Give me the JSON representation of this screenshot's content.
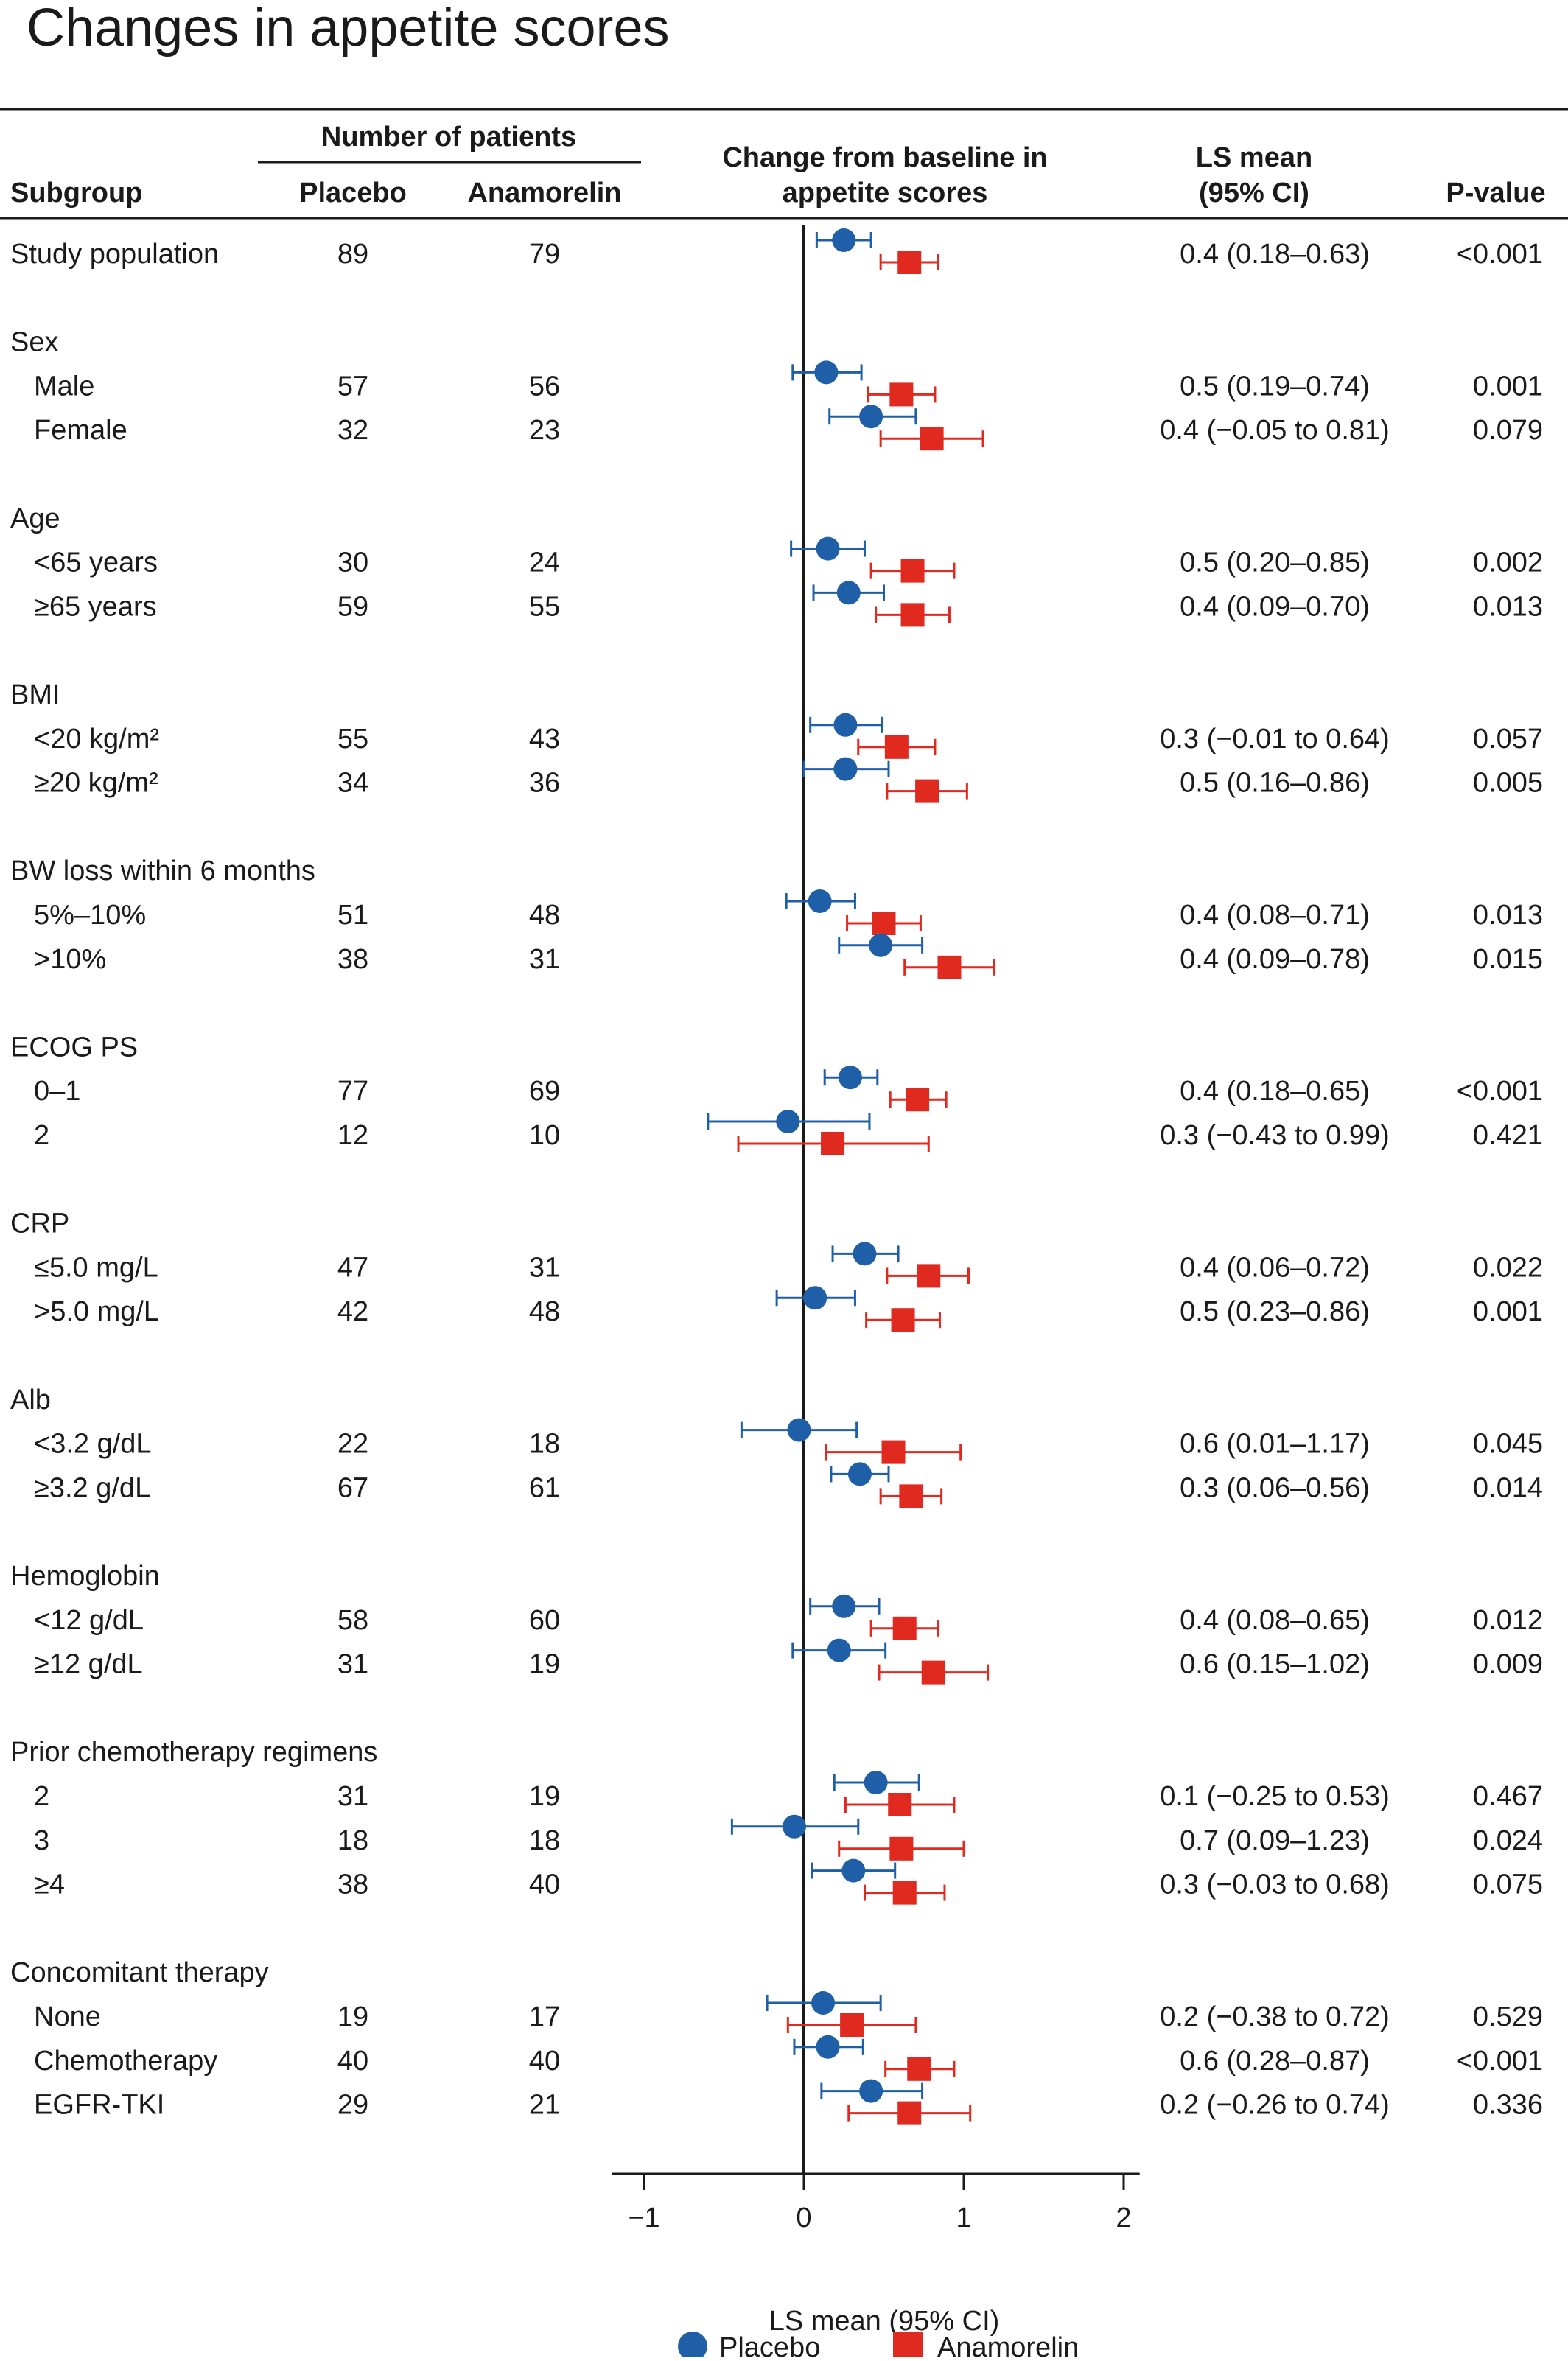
{
  "title": "Changes in appetite scores",
  "headers": {
    "subgroup": "Subgroup",
    "number_of_patients": "Number of patients",
    "placebo": "Placebo",
    "anamorelin": "Anamorelin",
    "change_line1": "Change from baseline in",
    "change_line2": "appetite scores",
    "ls_mean_line1": "LS mean",
    "ls_mean_line2": "(95% CI)",
    "pvalue": "P-value"
  },
  "colors": {
    "placebo": "#1f5fa8",
    "anamorelin": "#e0291f",
    "text": "#1a1a1a"
  },
  "chart_data": {
    "type": "scatter",
    "xlabel": "LS mean (95% CI)",
    "xlim": [
      -1.2,
      2.1
    ],
    "xticks": [
      "−1",
      "0",
      "1",
      "2"
    ],
    "xtick_values": [
      -1,
      0,
      1,
      2
    ],
    "legend": {
      "position": "bottom-center",
      "placebo": "Placebo",
      "anamorelin": "Anamorelin"
    },
    "rows": [
      {
        "kind": "data",
        "label": "Study population",
        "indent": false,
        "n_placebo": "89",
        "n_anamorelin": "79",
        "ls_mean": "0.4 (0.18–0.63)",
        "pvalue": "<0.001",
        "placebo": [
          0.25,
          0.08,
          0.42
        ],
        "anamorelin": [
          0.66,
          0.48,
          0.84
        ]
      },
      {
        "kind": "header",
        "label": "Sex"
      },
      {
        "kind": "data",
        "label": "Male",
        "indent": true,
        "n_placebo": "57",
        "n_anamorelin": "56",
        "ls_mean": "0.5 (0.19–0.74)",
        "pvalue": "0.001",
        "placebo": [
          0.14,
          -0.07,
          0.36
        ],
        "anamorelin": [
          0.61,
          0.4,
          0.82
        ]
      },
      {
        "kind": "data",
        "label": "Female",
        "indent": true,
        "n_placebo": "32",
        "n_anamorelin": "23",
        "ls_mean": "0.4 (−0.05 to 0.81)",
        "pvalue": "0.079",
        "placebo": [
          0.42,
          0.16,
          0.7
        ],
        "anamorelin": [
          0.8,
          0.48,
          1.12
        ]
      },
      {
        "kind": "header",
        "label": "Age"
      },
      {
        "kind": "data",
        "label": "<65 years",
        "indent": true,
        "n_placebo": "30",
        "n_anamorelin": "24",
        "ls_mean": "0.5 (0.20–0.85)",
        "pvalue": "0.002",
        "placebo": [
          0.15,
          -0.08,
          0.38
        ],
        "anamorelin": [
          0.68,
          0.42,
          0.94
        ]
      },
      {
        "kind": "data",
        "label": "≥65 years",
        "indent": true,
        "n_placebo": "59",
        "n_anamorelin": "55",
        "ls_mean": "0.4 (0.09–0.70)",
        "pvalue": "0.013",
        "placebo": [
          0.28,
          0.06,
          0.5
        ],
        "anamorelin": [
          0.68,
          0.45,
          0.91
        ]
      },
      {
        "kind": "header",
        "label": "BMI"
      },
      {
        "kind": "data",
        "label": "<20 kg/m²",
        "indent": true,
        "n_placebo": "55",
        "n_anamorelin": "43",
        "ls_mean": "0.3 (−0.01 to 0.64)",
        "pvalue": "0.057",
        "placebo": [
          0.26,
          0.04,
          0.49
        ],
        "anamorelin": [
          0.58,
          0.34,
          0.82
        ]
      },
      {
        "kind": "data",
        "label": "≥20 kg/m²",
        "indent": true,
        "n_placebo": "34",
        "n_anamorelin": "36",
        "ls_mean": "0.5 (0.16–0.86)",
        "pvalue": "0.005",
        "placebo": [
          0.26,
          0.0,
          0.53
        ],
        "anamorelin": [
          0.77,
          0.52,
          1.02
        ]
      },
      {
        "kind": "header",
        "label": "BW loss within 6 months"
      },
      {
        "kind": "data",
        "label": "5%–10%",
        "indent": true,
        "n_placebo": "51",
        "n_anamorelin": "48",
        "ls_mean": "0.4 (0.08–0.71)",
        "pvalue": "0.013",
        "placebo": [
          0.1,
          -0.11,
          0.32
        ],
        "anamorelin": [
          0.5,
          0.27,
          0.73
        ]
      },
      {
        "kind": "data",
        "label": ">10%",
        "indent": true,
        "n_placebo": "38",
        "n_anamorelin": "31",
        "ls_mean": "0.4 (0.09–0.78)",
        "pvalue": "0.015",
        "placebo": [
          0.48,
          0.22,
          0.74
        ],
        "anamorelin": [
          0.91,
          0.63,
          1.19
        ]
      },
      {
        "kind": "header",
        "label": "ECOG PS"
      },
      {
        "kind": "data",
        "label": "0–1",
        "indent": true,
        "n_placebo": "77",
        "n_anamorelin": "69",
        "ls_mean": "0.4 (0.18–0.65)",
        "pvalue": "<0.001",
        "placebo": [
          0.29,
          0.13,
          0.46
        ],
        "anamorelin": [
          0.71,
          0.54,
          0.89
        ]
      },
      {
        "kind": "data",
        "label": "2",
        "indent": true,
        "n_placebo": "12",
        "n_anamorelin": "10",
        "ls_mean": "0.3 (−0.43 to 0.99)",
        "pvalue": "0.421",
        "placebo": [
          -0.1,
          -0.6,
          0.41
        ],
        "anamorelin": [
          0.18,
          -0.41,
          0.78
        ]
      },
      {
        "kind": "header",
        "label": "CRP"
      },
      {
        "kind": "data",
        "label": "≤5.0 mg/L",
        "indent": true,
        "n_placebo": "47",
        "n_anamorelin": "31",
        "ls_mean": "0.4 (0.06–0.72)",
        "pvalue": "0.022",
        "placebo": [
          0.38,
          0.18,
          0.59
        ],
        "anamorelin": [
          0.78,
          0.52,
          1.03
        ]
      },
      {
        "kind": "data",
        "label": ">5.0 mg/L",
        "indent": true,
        "n_placebo": "42",
        "n_anamorelin": "48",
        "ls_mean": "0.5 (0.23–0.86)",
        "pvalue": "0.001",
        "placebo": [
          0.07,
          -0.17,
          0.32
        ],
        "anamorelin": [
          0.62,
          0.39,
          0.85
        ]
      },
      {
        "kind": "header",
        "label": "Alb"
      },
      {
        "kind": "data",
        "label": "<3.2 g/dL",
        "indent": true,
        "n_placebo": "22",
        "n_anamorelin": "18",
        "ls_mean": "0.6 (0.01–1.17)",
        "pvalue": "0.045",
        "placebo": [
          -0.03,
          -0.39,
          0.33
        ],
        "anamorelin": [
          0.56,
          0.14,
          0.98
        ]
      },
      {
        "kind": "data",
        "label": "≥3.2 g/dL",
        "indent": true,
        "n_placebo": "67",
        "n_anamorelin": "61",
        "ls_mean": "0.3 (0.06–0.56)",
        "pvalue": "0.014",
        "placebo": [
          0.35,
          0.17,
          0.53
        ],
        "anamorelin": [
          0.67,
          0.48,
          0.86
        ]
      },
      {
        "kind": "header",
        "label": "Hemoglobin"
      },
      {
        "kind": "data",
        "label": "<12 g/dL",
        "indent": true,
        "n_placebo": "58",
        "n_anamorelin": "60",
        "ls_mean": "0.4 (0.08–0.65)",
        "pvalue": "0.012",
        "placebo": [
          0.25,
          0.04,
          0.47
        ],
        "anamorelin": [
          0.63,
          0.42,
          0.84
        ]
      },
      {
        "kind": "data",
        "label": "≥12 g/dL",
        "indent": true,
        "n_placebo": "31",
        "n_anamorelin": "19",
        "ls_mean": "0.6 (0.15–1.02)",
        "pvalue": "0.009",
        "placebo": [
          0.22,
          -0.07,
          0.51
        ],
        "anamorelin": [
          0.81,
          0.47,
          1.15
        ]
      },
      {
        "kind": "header",
        "label": "Prior chemotherapy regimens"
      },
      {
        "kind": "data",
        "label": "2",
        "indent": true,
        "n_placebo": "31",
        "n_anamorelin": "19",
        "ls_mean": "0.1 (−0.25 to 0.53)",
        "pvalue": "0.467",
        "placebo": [
          0.45,
          0.19,
          0.72
        ],
        "anamorelin": [
          0.6,
          0.26,
          0.94
        ]
      },
      {
        "kind": "data",
        "label": "3",
        "indent": true,
        "n_placebo": "18",
        "n_anamorelin": "18",
        "ls_mean": "0.7 (0.09–1.23)",
        "pvalue": "0.024",
        "placebo": [
          -0.06,
          -0.45,
          0.34
        ],
        "anamorelin": [
          0.61,
          0.22,
          1.0
        ]
      },
      {
        "kind": "data",
        "label": "≥4",
        "indent": true,
        "n_placebo": "38",
        "n_anamorelin": "40",
        "ls_mean": "0.3 (−0.03 to 0.68)",
        "pvalue": "0.075",
        "placebo": [
          0.31,
          0.05,
          0.57
        ],
        "anamorelin": [
          0.63,
          0.38,
          0.88
        ]
      },
      {
        "kind": "header",
        "label": "Concomitant therapy"
      },
      {
        "kind": "data",
        "label": "None",
        "indent": true,
        "n_placebo": "19",
        "n_anamorelin": "17",
        "ls_mean": "0.2 (−0.38 to 0.72)",
        "pvalue": "0.529",
        "placebo": [
          0.12,
          -0.23,
          0.48
        ],
        "anamorelin": [
          0.3,
          -0.1,
          0.7
        ]
      },
      {
        "kind": "data",
        "label": "Chemotherapy",
        "indent": true,
        "n_placebo": "40",
        "n_anamorelin": "40",
        "ls_mean": "0.6 (0.28–0.87)",
        "pvalue": "<0.001",
        "placebo": [
          0.15,
          -0.06,
          0.37
        ],
        "anamorelin": [
          0.72,
          0.51,
          0.94
        ]
      },
      {
        "kind": "data",
        "label": "EGFR-TKI",
        "indent": true,
        "n_placebo": "29",
        "n_anamorelin": "21",
        "ls_mean": "0.2 (−0.26 to 0.74)",
        "pvalue": "0.336",
        "placebo": [
          0.42,
          0.11,
          0.74
        ],
        "anamorelin": [
          0.66,
          0.28,
          1.04
        ]
      }
    ]
  }
}
